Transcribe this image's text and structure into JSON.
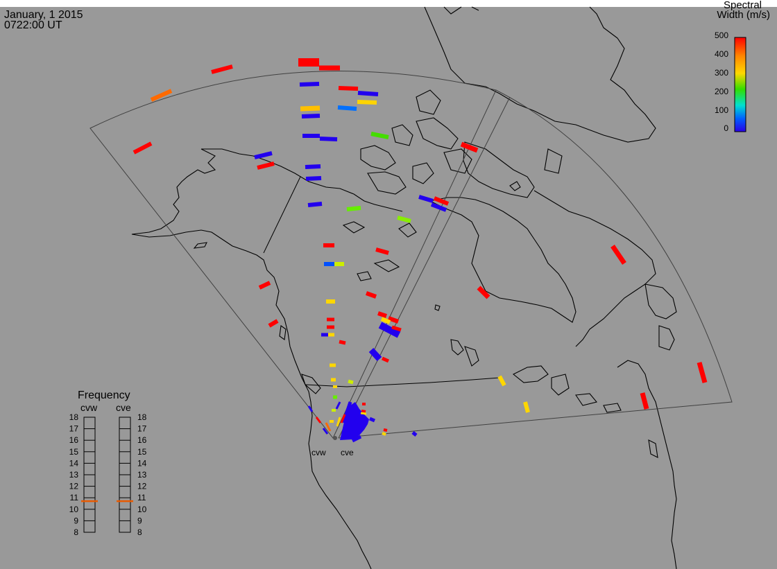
{
  "header": {
    "date": "January, 1 2015",
    "time": "0722:00 UT"
  },
  "colorbar": {
    "title_line1": "Spectral",
    "title_line2": "Width (m/s)",
    "ticks": [
      "500",
      "400",
      "300",
      "200",
      "100",
      "0"
    ],
    "colors": [
      "#ff0000",
      "#ffd700",
      "#33dd00",
      "#00e0d0",
      "#0040ff",
      "#2a00e6"
    ]
  },
  "frequency_panel": {
    "title": "Frequency",
    "radars": [
      {
        "label": "cvw",
        "value": 10.7
      },
      {
        "label": "cve",
        "value": 10.7
      }
    ],
    "scale": [
      "18",
      "17",
      "16",
      "15",
      "14",
      "13",
      "12",
      "11",
      "10",
      "9",
      "8"
    ],
    "marker_color": "#e85a00"
  },
  "sites": [
    {
      "label": "cvw"
    },
    {
      "label": "cve"
    }
  ],
  "map": {
    "background": "#999999",
    "coast_color": "#000000",
    "fov_color": "#404040"
  }
}
